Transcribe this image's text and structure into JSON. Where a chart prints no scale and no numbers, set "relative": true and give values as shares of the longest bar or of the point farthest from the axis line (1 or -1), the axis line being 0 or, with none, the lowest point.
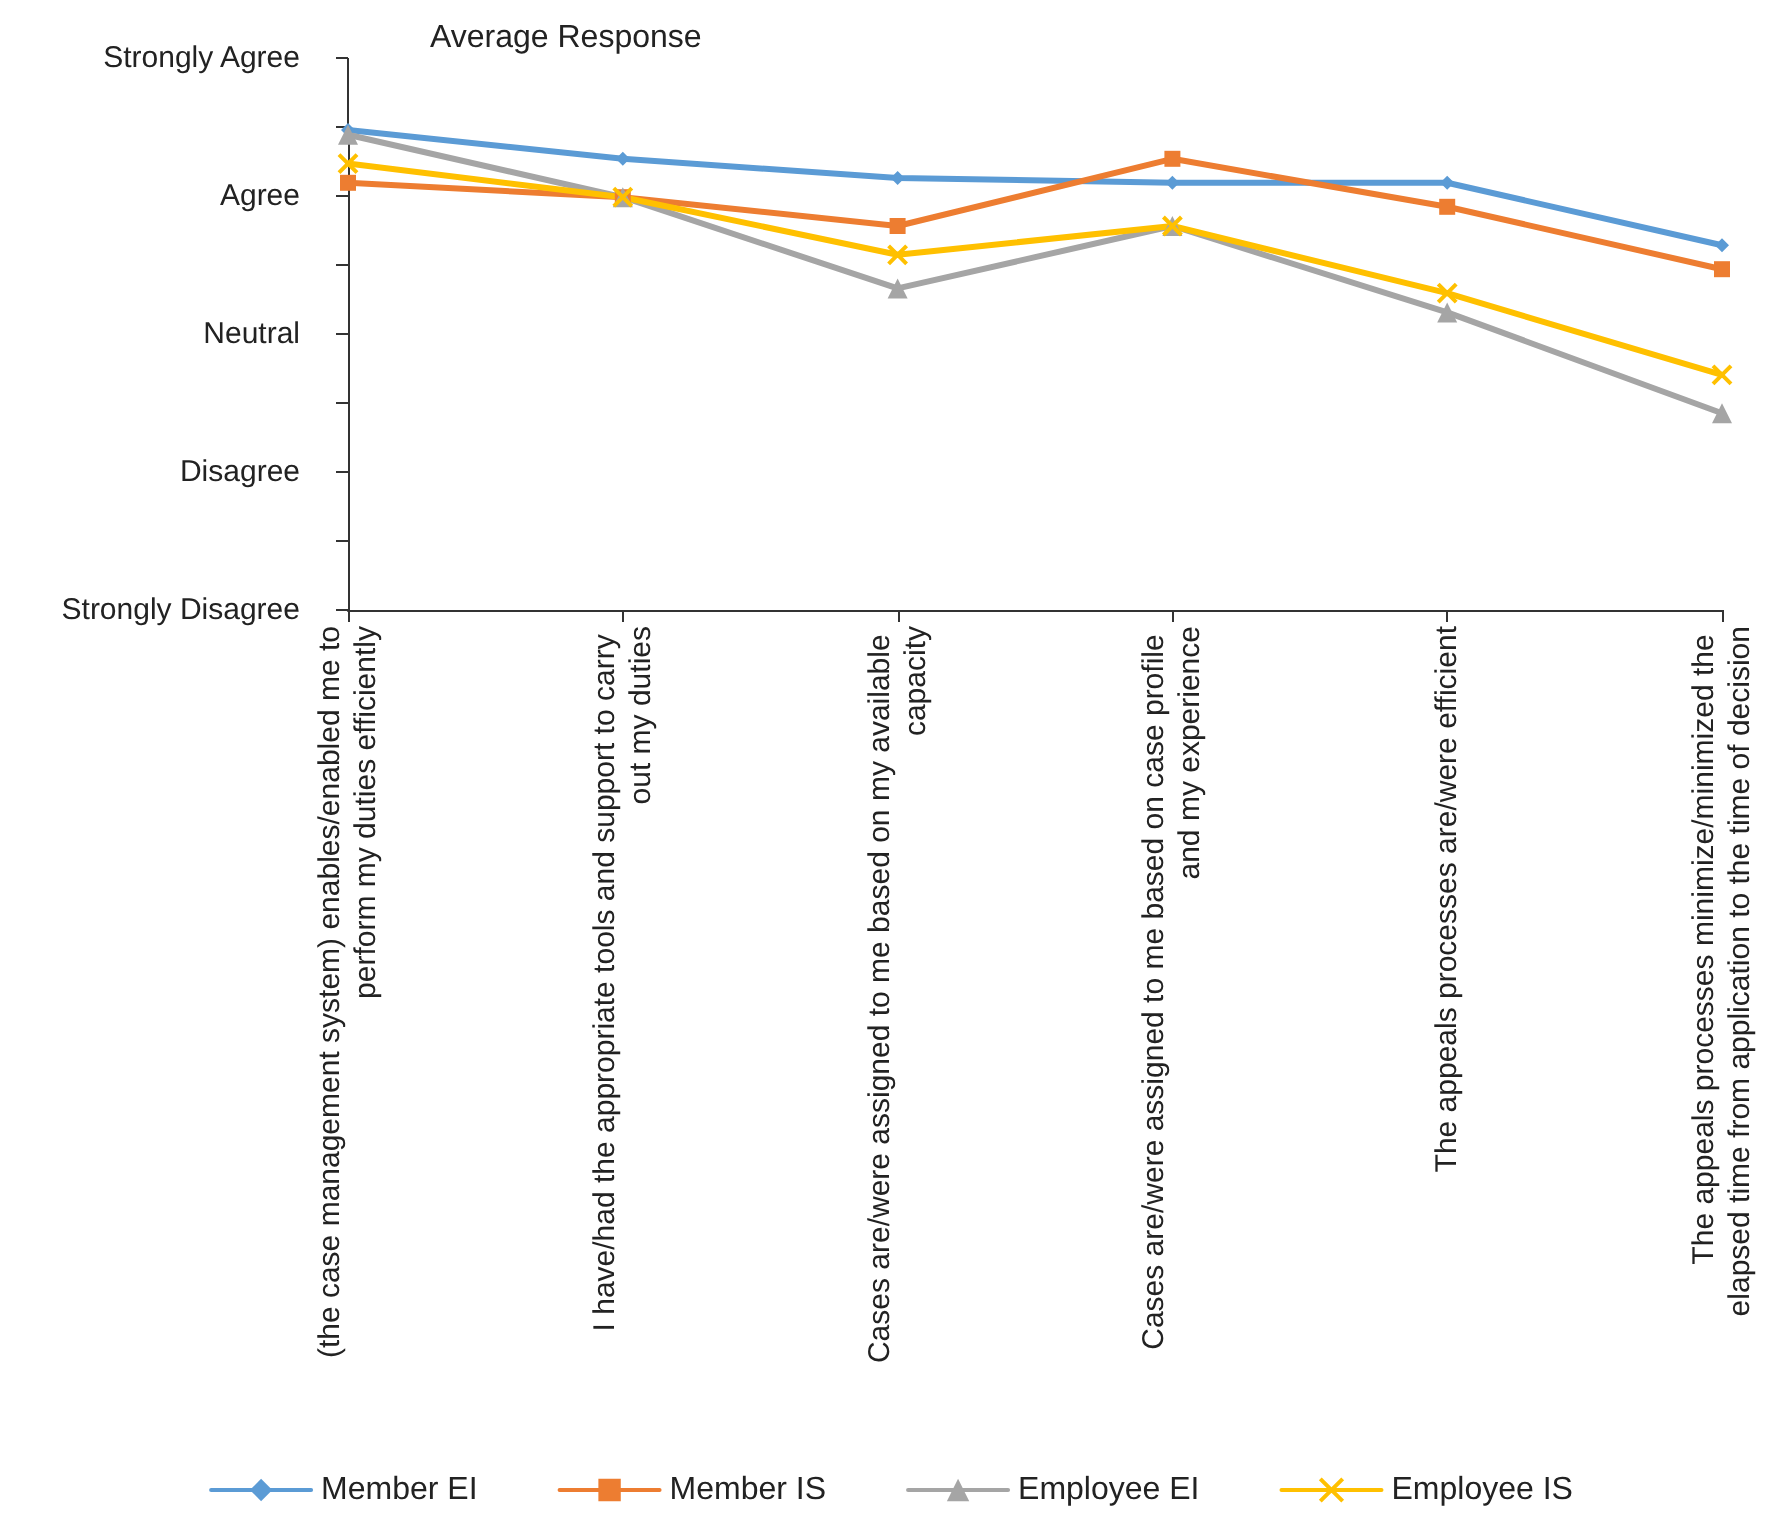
{
  "chart_data": {
    "type": "line",
    "title": "Average Response",
    "relative": true,
    "categories": [
      "(the case management system) enables/enabled me to perform my duties efficiently",
      "I have/had the appropriate tools and support to carry out my duties",
      "Cases are/were assigned to me based on my available capacity",
      "Cases are/were assigned to me based on case profile and my experience",
      "The appeals processes are/were efficient",
      "The appeals processes minimize/minimized the elapsed time from application to the time of decision"
    ],
    "series": [
      {
        "name": "Member EI",
        "color": "#5b9bd5",
        "marker": "diamond",
        "values": [
          1,
          0.94,
          0.9,
          0.89,
          0.89,
          0.76
        ]
      },
      {
        "name": "Member IS",
        "color": "#ed7d31",
        "marker": "square",
        "values": [
          0.89,
          0.86,
          0.8,
          0.94,
          0.84,
          0.71
        ]
      },
      {
        "name": "Employee EI",
        "color": "#a5a5a5",
        "marker": "triangle",
        "values": [
          0.99,
          0.86,
          0.67,
          0.8,
          0.62,
          0.41
        ]
      },
      {
        "name": "Employee IS",
        "color": "#ffc000",
        "marker": "cross",
        "values": [
          0.93,
          0.86,
          0.74,
          0.8,
          0.66,
          0.49
        ]
      }
    ],
    "annotations": [
      "Strongly Disagree",
      "Disagree",
      "Neutral",
      "Agree",
      "Strongly Agree"
    ],
    "grid": false,
    "legend": "bottom",
    "line_style": "solid"
  }
}
